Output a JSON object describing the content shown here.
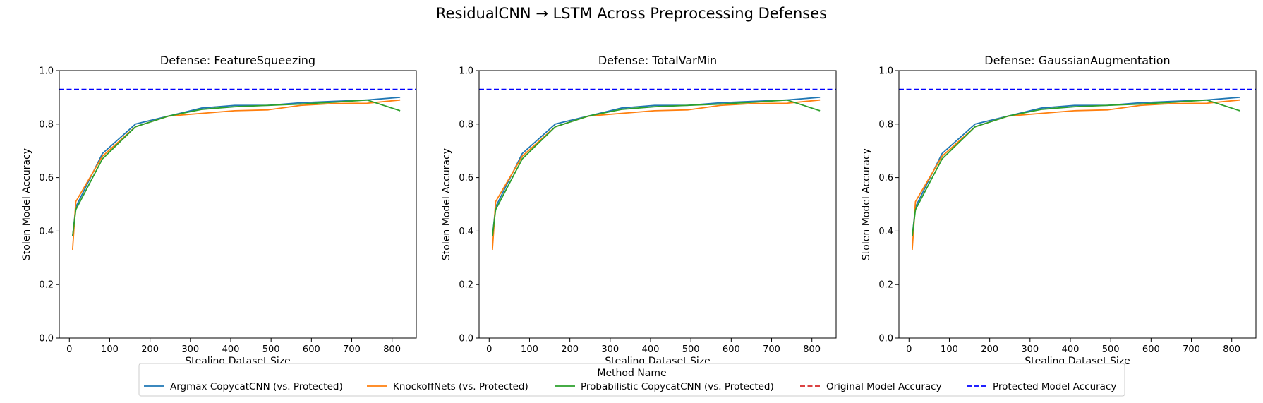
{
  "figure": {
    "suptitle": "ResidualCNN → LSTM Across Preprocessing Defenses"
  },
  "legend": {
    "title": "Method Name",
    "placement": "bottom-center",
    "entries": [
      {
        "label": "Argmax CopycatCNN (vs. Protected)",
        "color": "#1f77b4",
        "style": "solid"
      },
      {
        "label": "KnockoffNets (vs. Protected)",
        "color": "#ff7f0e",
        "style": "solid"
      },
      {
        "label": "Probabilistic CopycatCNN (vs. Protected)",
        "color": "#2ca02c",
        "style": "solid"
      },
      {
        "label": "Original Model Accuracy",
        "color": "#d62728",
        "style": "dashed"
      },
      {
        "label": "Protected Model Accuracy",
        "color": "#0000ff",
        "style": "dashed"
      }
    ]
  },
  "chart_data": [
    {
      "type": "line",
      "title": "Defense: FeatureSqueezing",
      "xlabel": "Stealing Dataset Size",
      "ylabel": "Stolen Model Accuracy",
      "xlim": [
        -25,
        860
      ],
      "ylim": [
        0,
        1
      ],
      "xticks": [
        0,
        100,
        200,
        300,
        400,
        500,
        600,
        700,
        800
      ],
      "yticks": [
        0.0,
        0.2,
        0.4,
        0.6,
        0.8,
        1.0
      ],
      "grid": false,
      "x": [
        8,
        16,
        82,
        164,
        246,
        328,
        410,
        492,
        574,
        656,
        738,
        820
      ],
      "series": [
        {
          "name": "Argmax CopycatCNN (vs. Protected)",
          "color": "#1f77b4",
          "values": [
            0.38,
            0.49,
            0.69,
            0.8,
            0.83,
            0.86,
            0.87,
            0.87,
            0.88,
            0.885,
            0.89,
            0.9
          ]
        },
        {
          "name": "KnockoffNets (vs. Protected)",
          "color": "#ff7f0e",
          "values": [
            0.33,
            0.51,
            0.68,
            0.79,
            0.83,
            0.84,
            0.85,
            0.853,
            0.87,
            0.877,
            0.878,
            0.89
          ]
        },
        {
          "name": "Probabilistic CopycatCNN (vs. Protected)",
          "color": "#2ca02c",
          "values": [
            0.38,
            0.48,
            0.67,
            0.79,
            0.83,
            0.855,
            0.865,
            0.87,
            0.875,
            0.882,
            0.89,
            0.85
          ]
        }
      ],
      "hlines": [
        {
          "name": "Protected Model Accuracy",
          "color": "#0000ff",
          "style": "dashed",
          "y": 0.93
        }
      ]
    },
    {
      "type": "line",
      "title": "Defense: TotalVarMin",
      "xlabel": "Stealing Dataset Size",
      "ylabel": "Stolen Model Accuracy",
      "xlim": [
        -25,
        860
      ],
      "ylim": [
        0,
        1
      ],
      "xticks": [
        0,
        100,
        200,
        300,
        400,
        500,
        600,
        700,
        800
      ],
      "yticks": [
        0.0,
        0.2,
        0.4,
        0.6,
        0.8,
        1.0
      ],
      "grid": false,
      "x": [
        8,
        16,
        82,
        164,
        246,
        328,
        410,
        492,
        574,
        656,
        738,
        820
      ],
      "series": [
        {
          "name": "Argmax CopycatCNN (vs. Protected)",
          "color": "#1f77b4",
          "values": [
            0.38,
            0.49,
            0.69,
            0.8,
            0.83,
            0.86,
            0.87,
            0.87,
            0.88,
            0.885,
            0.89,
            0.9
          ]
        },
        {
          "name": "KnockoffNets (vs. Protected)",
          "color": "#ff7f0e",
          "values": [
            0.33,
            0.51,
            0.68,
            0.79,
            0.83,
            0.84,
            0.85,
            0.853,
            0.87,
            0.877,
            0.878,
            0.89
          ]
        },
        {
          "name": "Probabilistic CopycatCNN (vs. Protected)",
          "color": "#2ca02c",
          "values": [
            0.38,
            0.48,
            0.67,
            0.79,
            0.83,
            0.855,
            0.865,
            0.87,
            0.875,
            0.882,
            0.89,
            0.85
          ]
        }
      ],
      "hlines": [
        {
          "name": "Protected Model Accuracy",
          "color": "#0000ff",
          "style": "dashed",
          "y": 0.93
        }
      ]
    },
    {
      "type": "line",
      "title": "Defense: GaussianAugmentation",
      "xlabel": "Stealing Dataset Size",
      "ylabel": "Stolen Model Accuracy",
      "xlim": [
        -25,
        860
      ],
      "ylim": [
        0,
        1
      ],
      "xticks": [
        0,
        100,
        200,
        300,
        400,
        500,
        600,
        700,
        800
      ],
      "yticks": [
        0.0,
        0.2,
        0.4,
        0.6,
        0.8,
        1.0
      ],
      "grid": false,
      "x": [
        8,
        16,
        82,
        164,
        246,
        328,
        410,
        492,
        574,
        656,
        738,
        820
      ],
      "series": [
        {
          "name": "Argmax CopycatCNN (vs. Protected)",
          "color": "#1f77b4",
          "values": [
            0.38,
            0.49,
            0.69,
            0.8,
            0.83,
            0.86,
            0.87,
            0.87,
            0.88,
            0.885,
            0.89,
            0.9
          ]
        },
        {
          "name": "KnockoffNets (vs. Protected)",
          "color": "#ff7f0e",
          "values": [
            0.33,
            0.51,
            0.68,
            0.79,
            0.83,
            0.84,
            0.85,
            0.853,
            0.87,
            0.877,
            0.878,
            0.89
          ]
        },
        {
          "name": "Probabilistic CopycatCNN (vs. Protected)",
          "color": "#2ca02c",
          "values": [
            0.38,
            0.48,
            0.67,
            0.79,
            0.83,
            0.855,
            0.865,
            0.87,
            0.875,
            0.882,
            0.89,
            0.85
          ]
        }
      ],
      "hlines": [
        {
          "name": "Protected Model Accuracy",
          "color": "#0000ff",
          "style": "dashed",
          "y": 0.93
        }
      ]
    }
  ]
}
